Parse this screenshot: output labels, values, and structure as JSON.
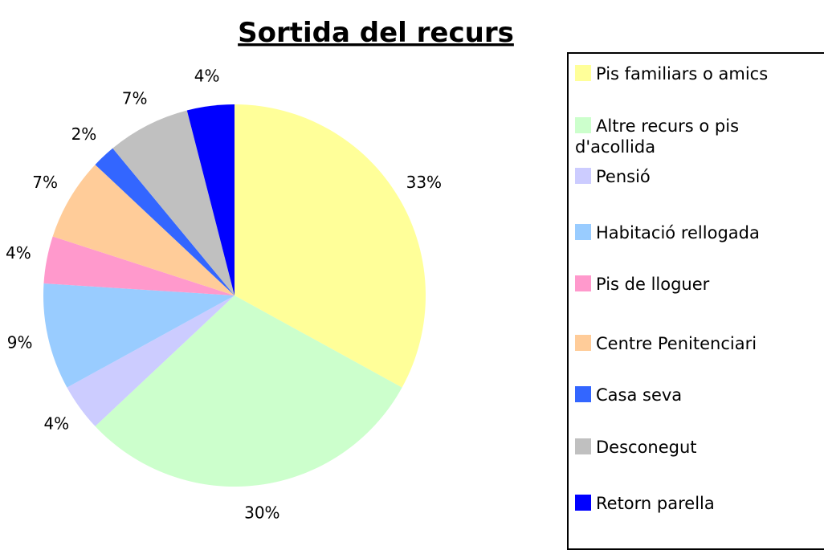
{
  "chart_data": {
    "type": "pie",
    "title": "Sortida del recurs",
    "categories": [
      "Pis familiars o amics",
      "Altre recurs o pis d'acollida",
      "Pensió",
      "Habitació rellogada",
      "Pis de lloguer",
      "Centre Penitenciari",
      "Casa seva",
      "Desconegut",
      "Retorn parella"
    ],
    "values": [
      33,
      30,
      4,
      9,
      4,
      7,
      2,
      7,
      4
    ],
    "value_labels": [
      "33%",
      "30%",
      "4%",
      "9%",
      "4%",
      "7%",
      "2%",
      "7%",
      "4%"
    ],
    "colors": [
      "#ffff99",
      "#ccffcc",
      "#ccccff",
      "#99ccff",
      "#ff99cc",
      "#ffcc99",
      "#3366ff",
      "#c0c0c0",
      "#0000ff"
    ],
    "legend": "right"
  }
}
